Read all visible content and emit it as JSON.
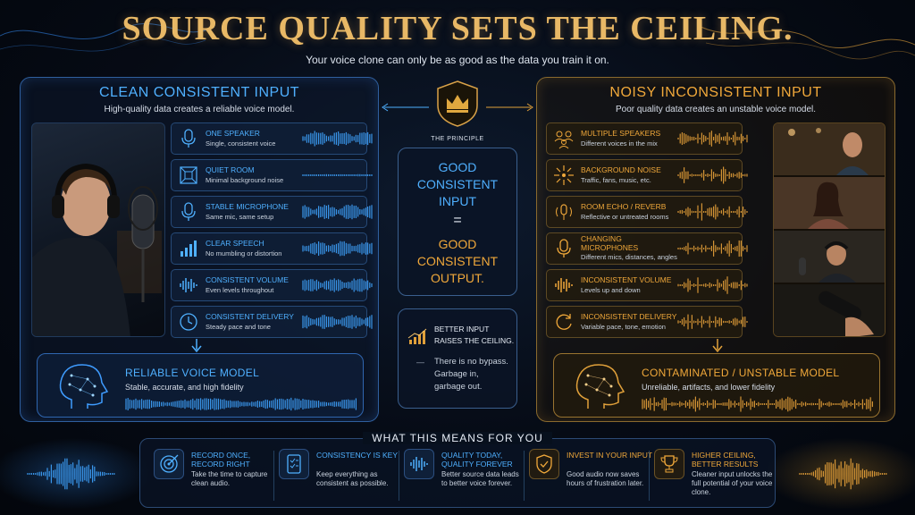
{
  "header": {
    "title": "SOURCE QUALITY SETS THE CEILING.",
    "subtitle": "Your voice clone can only be as good as the data you train it on."
  },
  "colors": {
    "clean_accent": "#4fb0ff",
    "noisy_accent": "#f0a83a",
    "title_gold": "#e8b866"
  },
  "clean": {
    "heading": "CLEAN CONSISTENT INPUT",
    "subheading": "High-quality data creates a reliable voice model.",
    "items": [
      {
        "icon": "microphone-icon",
        "label": "ONE SPEAKER",
        "desc": "Single, consistent voice"
      },
      {
        "icon": "quiet-room-icon",
        "label": "QUIET ROOM",
        "desc": "Minimal background noise"
      },
      {
        "icon": "microphone-icon",
        "label": "STABLE MICROPHONE",
        "desc": "Same mic, same setup"
      },
      {
        "icon": "bar-levels-icon",
        "label": "CLEAR SPEECH",
        "desc": "No mumbling or distortion"
      },
      {
        "icon": "waveform-icon",
        "label": "CONSISTENT VOLUME",
        "desc": "Even levels throughout"
      },
      {
        "icon": "clock-icon",
        "label": "CONSISTENT DELIVERY",
        "desc": "Steady pace and tone"
      }
    ],
    "result": {
      "icon": "brain-head-icon",
      "label": "RELIABLE VOICE MODEL",
      "desc": "Stable, accurate, and high fidelity"
    }
  },
  "noisy": {
    "heading": "NOISY INCONSISTENT INPUT",
    "subheading": "Poor quality data creates an unstable voice model.",
    "items": [
      {
        "icon": "people-icon",
        "label": "MULTIPLE SPEAKERS",
        "desc": "Different voices in the mix"
      },
      {
        "icon": "noise-burst-icon",
        "label": "BACKGROUND NOISE",
        "desc": "Traffic, fans, music, etc."
      },
      {
        "icon": "echo-mic-icon",
        "label": "ROOM ECHO / REVERB",
        "desc": "Reflective or untreated rooms"
      },
      {
        "icon": "microphone-icon",
        "label": "CHANGING MICROPHONES",
        "desc": "Different mics, distances, angles"
      },
      {
        "icon": "waveform-icon",
        "label": "INCONSISTENT VOLUME",
        "desc": "Levels up and down"
      },
      {
        "icon": "refresh-icon",
        "label": "INCONSISTENT DELIVERY",
        "desc": "Variable pace, tone, emotion"
      }
    ],
    "result": {
      "icon": "brain-head-icon",
      "label": "CONTAMINATED / UNSTABLE MODEL",
      "desc": "Unreliable, artifacts, and lower fidelity"
    }
  },
  "principle": {
    "caption": "THE PRINCIPLE",
    "line1": "GOOD",
    "line2": "CONSISTENT",
    "line3": "INPUT",
    "equals": "=",
    "line4": "GOOD",
    "line5": "CONSISTENT",
    "line6": "OUTPUT.",
    "note_head_1": "BETTER INPUT",
    "note_head_2": "RAISES THE CEILING.",
    "note_dash": "—",
    "note_body_1": "There is no bypass.",
    "note_body_2": "Garbage in,",
    "note_body_3": "garbage out."
  },
  "takeaways": {
    "title": "WHAT THIS MEANS FOR YOU",
    "items": [
      {
        "icon": "target-icon",
        "head": "RECORD ONCE, RECORD RIGHT",
        "desc": "Take the time to capture clean audio."
      },
      {
        "icon": "checklist-icon",
        "head": "CONSISTENCY IS KEY",
        "desc": "Keep everything as consistent as possible."
      },
      {
        "icon": "waveform-icon",
        "head": "QUALITY TODAY, QUALITY FOREVER",
        "desc": "Better source data leads to better voice forever."
      },
      {
        "icon": "shield-check-icon",
        "head": "INVEST IN YOUR INPUT",
        "desc": "Good audio now saves hours of frustration later."
      },
      {
        "icon": "trophy-icon",
        "head": "HIGHER CEILING, BETTER RESULTS",
        "desc": "Cleaner input unlocks the full potential of your voice clone."
      }
    ]
  }
}
